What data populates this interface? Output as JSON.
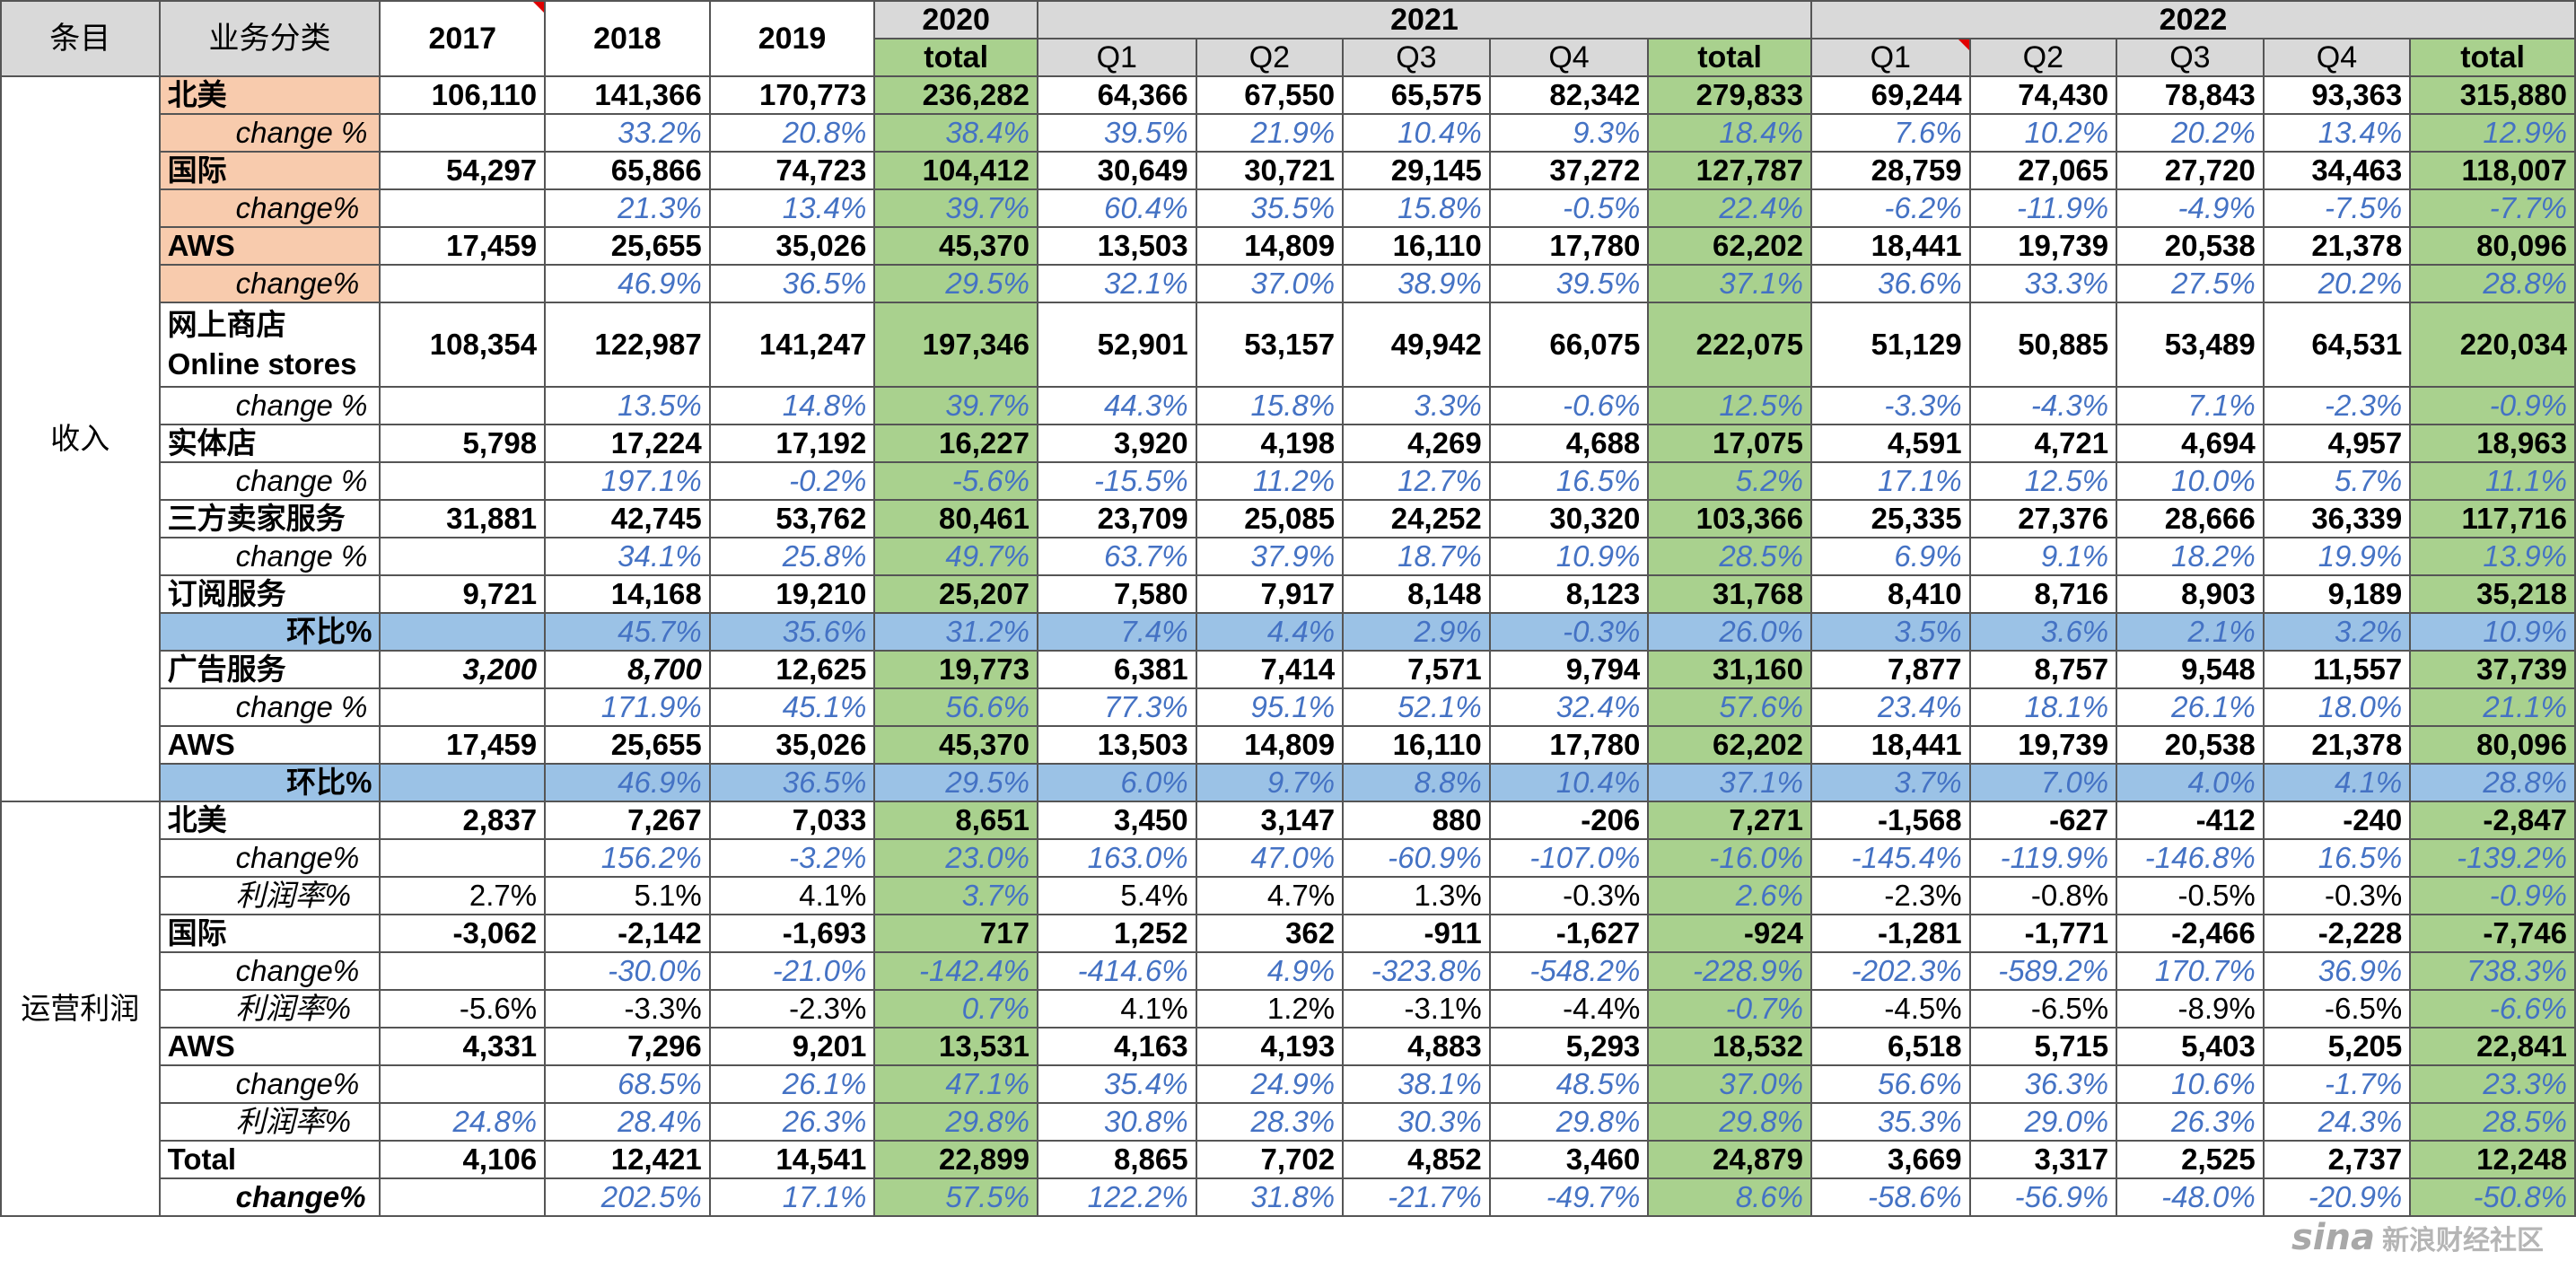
{
  "headers": {
    "col_item": "条目",
    "col_category": "业务分类",
    "y2017": "2017",
    "y2018": "2018",
    "y2019": "2019",
    "y2020": "2020",
    "y2021": "2021",
    "y2022": "2022",
    "sub2020": "total",
    "q1": "Q1",
    "q2": "Q2",
    "q3": "Q3",
    "q4": "Q4",
    "total": "total"
  },
  "groups": {
    "revenue": "收入",
    "op_profit": "运营利润"
  },
  "rows": [
    {
      "label": "北美",
      "style": "orange",
      "kind": "val",
      "v": [
        "106,110",
        "141,366",
        "170,773",
        "236,282",
        "64,366",
        "67,550",
        "65,575",
        "82,342",
        "279,833",
        "69,244",
        "74,430",
        "78,843",
        "93,363",
        "315,880"
      ]
    },
    {
      "label": "change %",
      "style": "orange-ind",
      "kind": "pct",
      "v": [
        "",
        "33.2%",
        "20.8%",
        "38.4%",
        "39.5%",
        "21.9%",
        "10.4%",
        "9.3%",
        "18.4%",
        "7.6%",
        "10.2%",
        "20.2%",
        "13.4%",
        "12.9%"
      ]
    },
    {
      "label": "国际",
      "style": "orange",
      "kind": "val",
      "v": [
        "54,297",
        "65,866",
        "74,723",
        "104,412",
        "30,649",
        "30,721",
        "29,145",
        "37,272",
        "127,787",
        "28,759",
        "27,065",
        "27,720",
        "34,463",
        "118,007"
      ]
    },
    {
      "label": "change%",
      "style": "orange-ind",
      "kind": "pct",
      "v": [
        "",
        "21.3%",
        "13.4%",
        "39.7%",
        "60.4%",
        "35.5%",
        "15.8%",
        "-0.5%",
        "22.4%",
        "-6.2%",
        "-11.9%",
        "-4.9%",
        "-7.5%",
        "-7.7%"
      ]
    },
    {
      "label": "AWS",
      "style": "orange-bold",
      "kind": "val",
      "v": [
        "17,459",
        "25,655",
        "35,026",
        "45,370",
        "13,503",
        "14,809",
        "16,110",
        "17,780",
        "62,202",
        "18,441",
        "19,739",
        "20,538",
        "21,378",
        "80,096"
      ]
    },
    {
      "label": "change%",
      "style": "orange-ind",
      "kind": "pct",
      "thick": true,
      "v": [
        "",
        "46.9%",
        "36.5%",
        "29.5%",
        "32.1%",
        "37.0%",
        "38.9%",
        "39.5%",
        "37.1%",
        "36.6%",
        "33.3%",
        "27.5%",
        "20.2%",
        "28.8%"
      ]
    },
    {
      "label": "网上商店",
      "label2": "Online stores",
      "style": "plain",
      "kind": "val",
      "tall": true,
      "v": [
        "108,354",
        "122,987",
        "141,247",
        "197,346",
        "52,901",
        "53,157",
        "49,942",
        "66,075",
        "222,075",
        "51,129",
        "50,885",
        "53,489",
        "64,531",
        "220,034"
      ]
    },
    {
      "label": "change %",
      "style": "ind",
      "kind": "pct",
      "v": [
        "",
        "13.5%",
        "14.8%",
        "39.7%",
        "44.3%",
        "15.8%",
        "3.3%",
        "-0.6%",
        "12.5%",
        "-3.3%",
        "-4.3%",
        "7.1%",
        "-2.3%",
        "-0.9%"
      ]
    },
    {
      "label": "实体店",
      "style": "plain",
      "kind": "val",
      "v": [
        "5,798",
        "17,224",
        "17,192",
        "16,227",
        "3,920",
        "4,198",
        "4,269",
        "4,688",
        "17,075",
        "4,591",
        "4,721",
        "4,694",
        "4,957",
        "18,963"
      ]
    },
    {
      "label": "change %",
      "style": "ind",
      "kind": "pct",
      "v": [
        "",
        "197.1%",
        "-0.2%",
        "-5.6%",
        "-15.5%",
        "11.2%",
        "12.7%",
        "16.5%",
        "5.2%",
        "17.1%",
        "12.5%",
        "10.0%",
        "5.7%",
        "11.1%"
      ]
    },
    {
      "label": "三方卖家服务",
      "style": "plain",
      "kind": "val",
      "v": [
        "31,881",
        "42,745",
        "53,762",
        "80,461",
        "23,709",
        "25,085",
        "24,252",
        "30,320",
        "103,366",
        "25,335",
        "27,376",
        "28,666",
        "36,339",
        "117,716"
      ]
    },
    {
      "label": "change %",
      "style": "ind",
      "kind": "pct",
      "v": [
        "",
        "34.1%",
        "25.8%",
        "49.7%",
        "63.7%",
        "37.9%",
        "18.7%",
        "10.9%",
        "28.5%",
        "6.9%",
        "9.1%",
        "18.2%",
        "19.9%",
        "13.9%"
      ]
    },
    {
      "label": "订阅服务",
      "style": "plain",
      "kind": "val",
      "v": [
        "9,721",
        "14,168",
        "19,210",
        "25,207",
        "7,580",
        "7,917",
        "8,148",
        "8,123",
        "31,768",
        "8,410",
        "8,716",
        "8,903",
        "9,189",
        "35,218"
      ]
    },
    {
      "label": "环比%",
      "style": "blue-right",
      "kind": "pct",
      "bluerow": true,
      "v": [
        "",
        "45.7%",
        "35.6%",
        "31.2%",
        "7.4%",
        "4.4%",
        "2.9%",
        "-0.3%",
        "26.0%",
        "3.5%",
        "3.6%",
        "2.1%",
        "3.2%",
        "10.9%"
      ]
    },
    {
      "label": "广告服务",
      "style": "plain",
      "kind": "val",
      "ital": [
        0,
        1
      ],
      "v": [
        "3,200",
        "8,700",
        "12,625",
        "19,773",
        "6,381",
        "7,414",
        "7,571",
        "9,794",
        "31,160",
        "7,877",
        "8,757",
        "9,548",
        "11,557",
        "37,739"
      ]
    },
    {
      "label": "change %",
      "style": "ind",
      "kind": "pct",
      "v": [
        "",
        "171.9%",
        "45.1%",
        "56.6%",
        "77.3%",
        "95.1%",
        "52.1%",
        "32.4%",
        "57.6%",
        "23.4%",
        "18.1%",
        "26.1%",
        "18.0%",
        "21.1%"
      ]
    },
    {
      "label": "AWS",
      "style": "plain-bold",
      "kind": "val",
      "v": [
        "17,459",
        "25,655",
        "35,026",
        "45,370",
        "13,503",
        "14,809",
        "16,110",
        "17,780",
        "62,202",
        "18,441",
        "19,739",
        "20,538",
        "21,378",
        "80,096"
      ]
    },
    {
      "label": "环比%",
      "style": "blue-right",
      "kind": "pct",
      "bluerow": true,
      "thick": true,
      "v": [
        "",
        "46.9%",
        "36.5%",
        "29.5%",
        "6.0%",
        "9.7%",
        "8.8%",
        "10.4%",
        "37.1%",
        "3.7%",
        "7.0%",
        "4.0%",
        "4.1%",
        "28.8%"
      ]
    },
    {
      "label": "北美",
      "style": "plain",
      "kind": "val",
      "v": [
        "2,837",
        "7,267",
        "7,033",
        "8,651",
        "3,450",
        "3,147",
        "880",
        "-206",
        "7,271",
        "-1,568",
        "-627",
        "-412",
        "-240",
        "-2,847"
      ]
    },
    {
      "label": "change%",
      "style": "ind",
      "kind": "pct",
      "v": [
        "",
        "156.2%",
        "-3.2%",
        "23.0%",
        "163.0%",
        "47.0%",
        "-60.9%",
        "-107.0%",
        "-16.0%",
        "-145.4%",
        "-119.9%",
        "-146.8%",
        "16.5%",
        "-139.2%"
      ]
    },
    {
      "label": "利润率%",
      "style": "ind",
      "kind": "rate",
      "v": [
        "2.7%",
        "5.1%",
        "4.1%",
        "3.7%",
        "5.4%",
        "4.7%",
        "1.3%",
        "-0.3%",
        "2.6%",
        "-2.3%",
        "-0.8%",
        "-0.5%",
        "-0.3%",
        "-0.9%"
      ]
    },
    {
      "label": "国际",
      "style": "plain",
      "kind": "val",
      "v": [
        "-3,062",
        "-2,142",
        "-1,693",
        "717",
        "1,252",
        "362",
        "-911",
        "-1,627",
        "-924",
        "-1,281",
        "-1,771",
        "-2,466",
        "-2,228",
        "-7,746"
      ]
    },
    {
      "label": "change%",
      "style": "ind",
      "kind": "pct",
      "v": [
        "",
        "-30.0%",
        "-21.0%",
        "-142.4%",
        "-414.6%",
        "4.9%",
        "-323.8%",
        "-548.2%",
        "-228.9%",
        "-202.3%",
        "-589.2%",
        "170.7%",
        "36.9%",
        "738.3%"
      ]
    },
    {
      "label": "利润率%",
      "style": "ind",
      "kind": "rate",
      "v": [
        "-5.6%",
        "-3.3%",
        "-2.3%",
        "0.7%",
        "4.1%",
        "1.2%",
        "-3.1%",
        "-4.4%",
        "-0.7%",
        "-4.5%",
        "-6.5%",
        "-8.9%",
        "-6.5%",
        "-6.6%"
      ]
    },
    {
      "label": "AWS",
      "style": "plain-bold",
      "kind": "val",
      "v": [
        "4,331",
        "7,296",
        "9,201",
        "13,531",
        "4,163",
        "4,193",
        "4,883",
        "5,293",
        "18,532",
        "6,518",
        "5,715",
        "5,403",
        "5,205",
        "22,841"
      ]
    },
    {
      "label": "change%",
      "style": "ind",
      "kind": "pct",
      "v": [
        "",
        "68.5%",
        "26.1%",
        "47.1%",
        "35.4%",
        "24.9%",
        "38.1%",
        "48.5%",
        "37.0%",
        "56.6%",
        "36.3%",
        "10.6%",
        "-1.7%",
        "23.3%"
      ]
    },
    {
      "label": "利润率%",
      "style": "ind",
      "kind": "rate-blue",
      "v": [
        "24.8%",
        "28.4%",
        "26.3%",
        "29.8%",
        "30.8%",
        "28.3%",
        "30.3%",
        "29.8%",
        "29.8%",
        "35.3%",
        "29.0%",
        "26.3%",
        "24.3%",
        "28.5%"
      ]
    },
    {
      "label": "Total",
      "style": "plain-bold",
      "kind": "val",
      "v": [
        "4,106",
        "12,421",
        "14,541",
        "22,899",
        "8,865",
        "7,702",
        "4,852",
        "3,460",
        "24,879",
        "3,669",
        "3,317",
        "2,525",
        "2,737",
        "12,248"
      ]
    },
    {
      "label": "change%",
      "style": "ind-bold",
      "kind": "pct",
      "v": [
        "",
        "202.5%",
        "17.1%",
        "57.5%",
        "122.2%",
        "31.8%",
        "-21.7%",
        "-49.7%",
        "8.6%",
        "-58.6%",
        "-56.9%",
        "-48.0%",
        "-20.9%",
        "-50.8%"
      ]
    }
  ],
  "watermark": {
    "logo": "sina",
    "text": "新浪财经社区"
  }
}
